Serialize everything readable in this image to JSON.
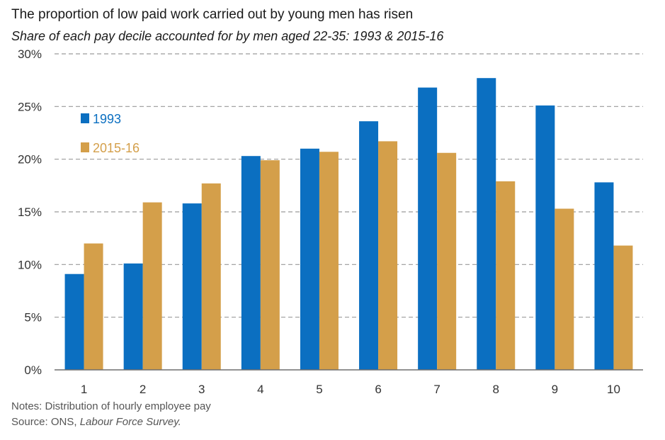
{
  "header": {
    "title": "The proportion of low paid work carried out by young men has risen",
    "subtitle": "Share of each pay decile accounted for by men aged 22-35: 1993 & 2015-16"
  },
  "footer": {
    "notes": "Notes: Distribution of hourly employee pay",
    "source_prefix": "Source: ONS, ",
    "source_name": "Labour Force Survey."
  },
  "chart_data": {
    "type": "bar",
    "title": "The proportion of low paid work carried out by young men has risen",
    "subtitle": "Share of each pay decile accounted for by men aged 22-35: 1993 & 2015-16",
    "xlabel": "",
    "ylabel": "",
    "categories": [
      "1",
      "2",
      "3",
      "4",
      "5",
      "6",
      "7",
      "8",
      "9",
      "10"
    ],
    "series": [
      {
        "name": "1993",
        "color": "#0b6fc1",
        "values": [
          9.1,
          10.1,
          15.8,
          20.3,
          21.0,
          23.6,
          26.8,
          27.7,
          25.1,
          17.8
        ]
      },
      {
        "name": "2015-16",
        "color": "#d49f4a",
        "values": [
          12.0,
          15.9,
          17.7,
          19.9,
          20.7,
          21.7,
          20.6,
          17.9,
          15.3,
          11.8
        ]
      }
    ],
    "ylim": [
      0,
      30
    ],
    "yticks": [
      0,
      5,
      10,
      15,
      20,
      25,
      30
    ],
    "ytick_labels": [
      "0%",
      "5%",
      "10%",
      "15%",
      "20%",
      "25%",
      "30%"
    ],
    "grid": true,
    "legend_position": "top-left"
  }
}
